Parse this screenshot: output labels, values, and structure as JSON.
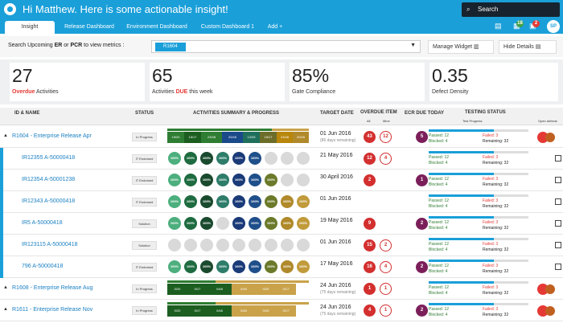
{
  "header": {
    "title": "Hi Matthew. Here is some actionable insight!",
    "search_placeholder": "Search",
    "avatar": "SP",
    "badge1": "18",
    "badge2": "2"
  },
  "tabs": [
    "Insight",
    "Release Dashboard",
    "Environment Dashboard",
    "Custom Dashboard 1",
    "Add"
  ],
  "filter": {
    "label_a": "Search Upcoming ",
    "label_er": "ER",
    "label_or": " or ",
    "label_pcr": "PCR",
    "label_b": " to view metrics :",
    "selected": "R1604",
    "manage_widget": "Manage Widget",
    "hide_details": "Hide Details"
  },
  "kpis": [
    {
      "value": "27",
      "label_red": "Overdue",
      "label_rest": " Activities"
    },
    {
      "value": "65",
      "label_pre": "Activities ",
      "label_red": "DUE",
      "label_rest": " this week"
    },
    {
      "value": "85%",
      "label": "Gate Compliance"
    },
    {
      "value": "0.35",
      "label": "Defect Density"
    }
  ],
  "columns": {
    "id": "ID & NAME",
    "status": "STATUS",
    "activities": "ACTIVITIES SUMMARY & PROGRESS",
    "target": "TARGET DATE",
    "overdue": "OVERDUE ITEM",
    "ecr": "ECR DUE  TODAY",
    "testing": "TESTING STATUS",
    "all": "All",
    "mine": "Mine",
    "test_progress": "Test Progress",
    "open_defects": "Open defects"
  },
  "rows": [
    {
      "id": "R1604 - Enterprise Release Apr",
      "status": "In Progress",
      "kind": "bar",
      "segs": [
        "19/20",
        "15/17",
        "23/48",
        "20/45",
        "12/25",
        "15/17",
        "23/48",
        "20/45"
      ],
      "date": "01 Jun 2016",
      "rem": "(86 days remaining)",
      "all": "43",
      "mine": "12",
      "ecr": "5",
      "passed": "12",
      "failed": "3",
      "blocked": "4",
      "remaining": "32",
      "parent": true
    },
    {
      "id": "IR12355 A-50000418",
      "status": "IT Endorsed",
      "kind": "circ",
      "circ": [
        "100%",
        "100%",
        "100%",
        "100%",
        "100%",
        "100%",
        "",
        "",
        ""
      ],
      "date": "21 May 2016",
      "all": "12",
      "mine": "4",
      "ecr": "",
      "passed": "12",
      "failed": "3",
      "blocked": "4",
      "remaining": "32"
    },
    {
      "id": "IR12354 A-50001238",
      "status": "IT Endorsed",
      "kind": "circ",
      "circ": [
        "100%",
        "100%",
        "100%",
        "100%",
        "100%",
        "100%",
        "100%",
        "",
        ""
      ],
      "date": "30 April 2016",
      "all": "2",
      "mine": "",
      "ecr": "1",
      "passed": "12",
      "failed": "3",
      "blocked": "4",
      "remaining": "32"
    },
    {
      "id": "IR12343 A-50000418",
      "status": "IT Endorsed",
      "kind": "circ",
      "circ": [
        "100%",
        "100%",
        "100%",
        "100%",
        "100%",
        "100%",
        "100%",
        "100%",
        "100%"
      ],
      "date": "01 Jun 2016",
      "all": "",
      "mine": "",
      "ecr": "",
      "passed": "12",
      "failed": "3",
      "blocked": "4",
      "remaining": "32"
    },
    {
      "id": "IR5 A-50000418",
      "status": "Solution",
      "kind": "circ",
      "circ": [
        "100%",
        "100%",
        "100%",
        "",
        "100%",
        "100%",
        "100%",
        "100%",
        "100%"
      ],
      "date": "19 May 2016",
      "all": "9",
      "mine": "",
      "ecr": "2",
      "passed": "12",
      "failed": "3",
      "blocked": "4",
      "remaining": "32"
    },
    {
      "id": "IR123115 A-50000418",
      "status": "Solution",
      "kind": "circ",
      "circ": [
        "",
        "",
        "",
        "",
        "",
        "",
        "",
        "",
        ""
      ],
      "date": "01 Jun 2016",
      "all": "15",
      "mine": "2",
      "ecr": "",
      "passed": "12",
      "failed": "3",
      "blocked": "4",
      "remaining": "32"
    },
    {
      "id": "796 A-50000418",
      "status": "IT Endorsed",
      "kind": "circ",
      "circ": [
        "100%",
        "100%",
        "100%",
        "100%",
        "100%",
        "100%",
        "100%",
        "100%",
        "100%"
      ],
      "date": "17 May 2016",
      "all": "16",
      "mine": "4",
      "ecr": "2",
      "passed": "12",
      "failed": "3",
      "blocked": "4",
      "remaining": "32"
    },
    {
      "id": "R1608 - Enterprise Release Aug",
      "status": "In Progress",
      "kind": "bar",
      "segs": [
        "0/20",
        "0/17",
        "0/48",
        "0/45",
        "0/25",
        "0/17"
      ],
      "date": "24 Jun 2016",
      "rem": "(75 days remaining)",
      "all": "1",
      "mine": "1",
      "ecr": "",
      "passed": "12",
      "failed": "3",
      "blocked": "4",
      "remaining": "32",
      "parent": true
    },
    {
      "id": "R1611 - Enterprise Release Nov",
      "status": "In Progress",
      "kind": "bar",
      "segs": [
        "0/20",
        "0/17",
        "0/48",
        "0/45",
        "0/25",
        "0/17"
      ],
      "date": "24 Jun 2016",
      "rem": "(75 days remaining)",
      "all": "4",
      "mine": "1",
      "ecr": "2",
      "passed": "12",
      "failed": "3",
      "blocked": "4",
      "remaining": "32",
      "parent": true
    }
  ],
  "testing_labels": {
    "passed": "Passed:",
    "failed": "Failed:",
    "blocked": "Blocked:",
    "remaining": "Remaining:"
  },
  "colors": {
    "accent": "#1a9fd9",
    "overdue": "#d32f2f",
    "ecr": "#7b1f5a"
  }
}
